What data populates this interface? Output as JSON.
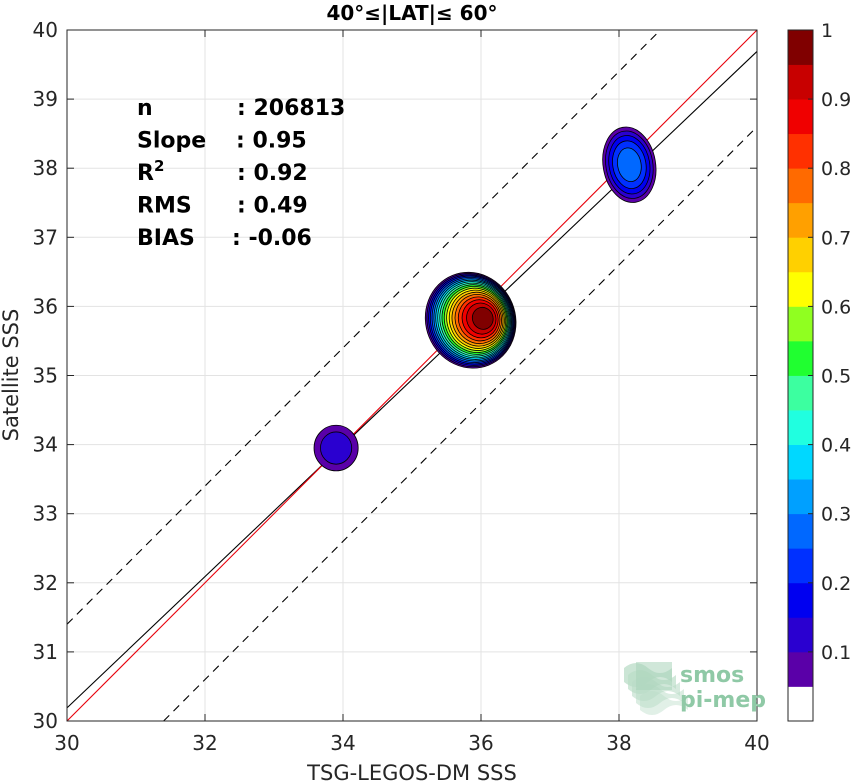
{
  "chart_data": {
    "type": "contour_scatter",
    "title": "40°≤|LAT|≤ 60°",
    "xlabel": "TSG-LEGOS-DM SSS",
    "ylabel": "Satellite SSS",
    "xlim": [
      30,
      40
    ],
    "ylim": [
      30,
      40
    ],
    "x_ticks": [
      "30",
      "32",
      "34",
      "36",
      "38",
      "40"
    ],
    "y_ticks": [
      "30",
      "31",
      "32",
      "33",
      "34",
      "35",
      "36",
      "37",
      "38",
      "39",
      "40"
    ],
    "grid": true,
    "stats": [
      {
        "label": "n",
        "value": ": 206813"
      },
      {
        "label": "Slope",
        "value": ": 0.95"
      },
      {
        "label": "R",
        "sup": "2",
        "value": ": 0.92"
      },
      {
        "label": "RMS",
        "value": ": 0.49"
      },
      {
        "label": "BIAS",
        "value": ": -0.06"
      }
    ],
    "lines": {
      "one_to_one": {
        "slope": 1,
        "intercept": 0,
        "color": "#e8000b"
      },
      "fit": {
        "slope": 0.95,
        "intercept": 1.69,
        "color": "#000000"
      },
      "upper_bound": {
        "slope": 1,
        "intercept": 1.4,
        "style": "dashed"
      },
      "lower_bound": {
        "slope": 1,
        "intercept": -1.4,
        "style": "dashed"
      }
    },
    "density_clusters": [
      {
        "center": [
          33.9,
          33.95
        ],
        "rx": 0.32,
        "ry": 0.33,
        "peak": 0.13
      },
      {
        "center": [
          35.85,
          35.8
        ],
        "rx": 0.65,
        "ry": 0.7,
        "peak": 1.0
      },
      {
        "center": [
          38.15,
          38.05
        ],
        "rx": 0.38,
        "ry": 0.55,
        "peak": 0.24
      }
    ],
    "colorbar": {
      "ticks": [
        "0.1",
        "0.2",
        "0.3",
        "0.4",
        "0.5",
        "0.6",
        "0.7",
        "0.8",
        "0.9",
        "1"
      ],
      "range": [
        0,
        1
      ],
      "levels": 19,
      "colors": [
        "#ffffff",
        "#5a00a8",
        "#2a00d0",
        "#0000f0",
        "#0030ff",
        "#0068ff",
        "#00a0ff",
        "#00d8ff",
        "#20ffe0",
        "#3cffa0",
        "#20ff30",
        "#90ff20",
        "#ffff00",
        "#ffd000",
        "#ffa000",
        "#ff6a00",
        "#ff3000",
        "#f00000",
        "#c80000",
        "#800000"
      ]
    },
    "logo_text": [
      "smos",
      "pi-mep"
    ]
  }
}
